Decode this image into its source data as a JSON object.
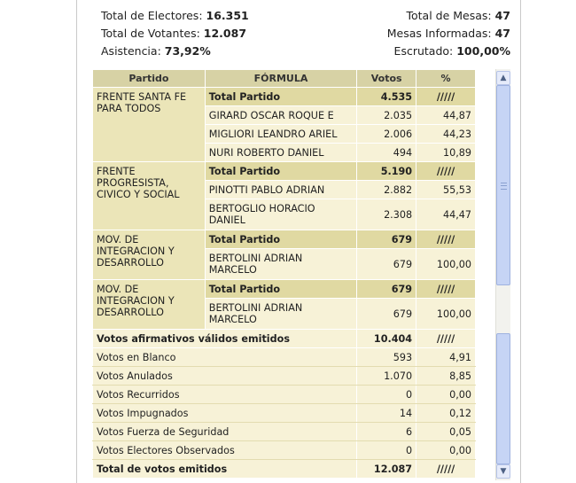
{
  "summary": {
    "electores_label": "Total de Electores:",
    "electores_value": "16.351",
    "votantes_label": "Total de Votantes:",
    "votantes_value": "12.087",
    "asistencia_label": "Asistencia:",
    "asistencia_value": "73,92%",
    "mesas_label": "Total de Mesas:",
    "mesas_value": "47",
    "informadas_label": "Mesas Informadas:",
    "informadas_value": "47",
    "escrutado_label": "Escrutado:",
    "escrutado_value": "100,00%"
  },
  "table": {
    "headers": {
      "partido": "Partido",
      "formula": "FÓRMULA",
      "votos": "Votos",
      "pct": "%"
    },
    "parties": [
      {
        "name": "FRENTE SANTA FE PARA TODOS",
        "total": {
          "label": "Total Partido",
          "votos": "4.535",
          "pct": "/////"
        },
        "candidates": [
          {
            "name": "GIRARD OSCAR ROQUE E",
            "votos": "2.035",
            "pct": "44,87"
          },
          {
            "name": "MIGLIORI LEANDRO ARIEL",
            "votos": "2.006",
            "pct": "44,23"
          },
          {
            "name": "NURI ROBERTO DANIEL",
            "votos": "494",
            "pct": "10,89"
          }
        ]
      },
      {
        "name": "FRENTE PROGRESISTA, CIVICO Y SOCIAL",
        "total": {
          "label": "Total Partido",
          "votos": "5.190",
          "pct": "/////"
        },
        "candidates": [
          {
            "name": "PINOTTI PABLO ADRIAN",
            "votos": "2.882",
            "pct": "55,53"
          },
          {
            "name": "BERTOGLIO HORACIO DANIEL",
            "votos": "2.308",
            "pct": "44,47"
          }
        ]
      },
      {
        "name": "MOV. DE INTEGRACION Y DESARROLLO",
        "total": {
          "label": "Total Partido",
          "votos": "679",
          "pct": "/////"
        },
        "candidates": [
          {
            "name": "BERTOLINI ADRIAN MARCELO",
            "votos": "679",
            "pct": "100,00"
          }
        ]
      },
      {
        "name": "MOV. DE INTEGRACION Y DESARROLLO",
        "total": {
          "label": "Total Partido",
          "votos": "679",
          "pct": "/////"
        },
        "candidates": [
          {
            "name": "BERTOLINI ADRIAN MARCELO",
            "votos": "679",
            "pct": "100,00"
          }
        ]
      }
    ],
    "afirmativos": {
      "label": "Votos afirmativos válidos emitidos",
      "votos": "10.404",
      "pct": "/////"
    },
    "special": [
      {
        "label": "Votos en Blanco",
        "votos": "593",
        "pct": "4,91"
      },
      {
        "label": "Votos Anulados",
        "votos": "1.070",
        "pct": "8,85"
      },
      {
        "label": "Votos Recurridos",
        "votos": "0",
        "pct": "0,00"
      },
      {
        "label": "Votos Impugnados",
        "votos": "14",
        "pct": "0,12"
      },
      {
        "label": "Votos Fuerza de Seguridad",
        "votos": "6",
        "pct": "0,05"
      },
      {
        "label": "Votos Electores Observados",
        "votos": "0",
        "pct": "0,00"
      }
    ],
    "total_emitidos": {
      "label": "Total de votos emitidos",
      "votos": "12.087",
      "pct": "/////"
    }
  },
  "scrollbar": {
    "up_icon": "chevron-up-icon",
    "down_icon": "chevron-down-icon"
  }
}
